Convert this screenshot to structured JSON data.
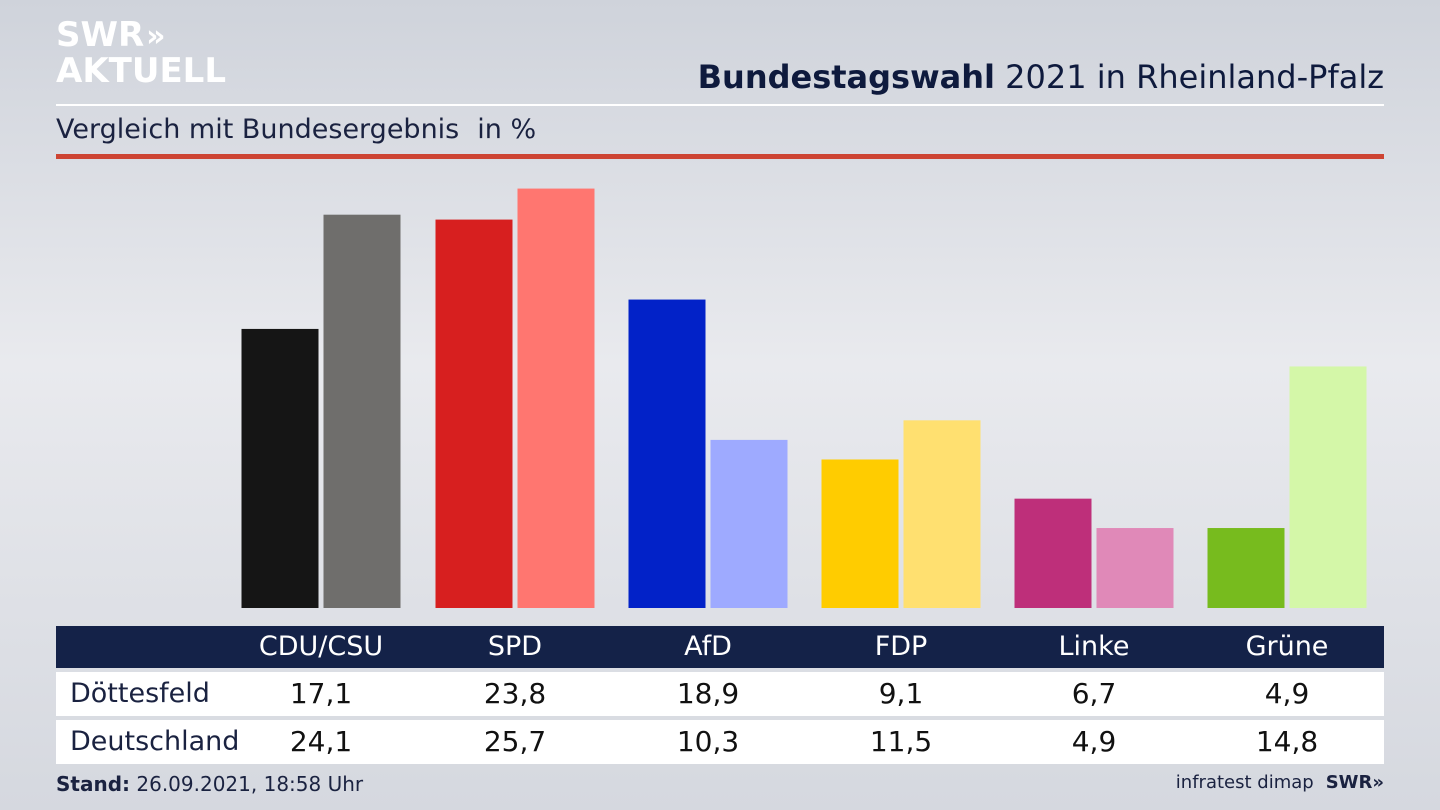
{
  "brand": {
    "line1": "SWR",
    "line1_arrows": "»",
    "line2": "AKTUELL"
  },
  "header": {
    "title_bold": "Bundestagswahl",
    "title_rest": " 2021 in Rheinland-Pfalz"
  },
  "subtitle": {
    "text": "Vergleich mit Bundesergebnis",
    "unit": "in %"
  },
  "colors": {
    "accent_red": "#cd4433",
    "table_header": "#142248",
    "CDU/CSU": [
      "#151515",
      "#6f6e6c"
    ],
    "SPD": [
      "#d71f1f",
      "#ff7670"
    ],
    "AfD": [
      "#0222c8",
      "#9eaaff"
    ],
    "FDP": [
      "#ffcc00",
      "#ffe070"
    ],
    "Linke": [
      "#be2f7a",
      "#e089b8"
    ],
    "Grüne": [
      "#77bb1e",
      "#d4f7a8"
    ]
  },
  "chart_data": {
    "type": "bar",
    "categories": [
      "CDU/CSU",
      "SPD",
      "AfD",
      "FDP",
      "Linke",
      "Grüne"
    ],
    "series": [
      {
        "name": "Döttesfeld",
        "values": [
          17.1,
          23.8,
          18.9,
          9.1,
          6.7,
          4.9
        ]
      },
      {
        "name": "Deutschland",
        "values": [
          24.1,
          25.7,
          10.3,
          11.5,
          4.9,
          14.8
        ]
      }
    ],
    "title": "Bundestagswahl 2021 in Rheinland-Pfalz",
    "subtitle": "Vergleich mit Bundesergebnis",
    "unit": "in %",
    "grid": false
  },
  "table": {
    "headers": [
      "CDU/CSU",
      "SPD",
      "AfD",
      "FDP",
      "Linke",
      "Grüne"
    ],
    "rows": [
      {
        "label": "Döttesfeld",
        "values": [
          "17,1",
          "23,8",
          "18,9",
          "9,1",
          "6,7",
          "4,9"
        ]
      },
      {
        "label": "Deutschland",
        "values": [
          "24,1",
          "25,7",
          "10,3",
          "11,5",
          "4,9",
          "14,8"
        ]
      }
    ]
  },
  "footer": {
    "stand_label": "Stand:",
    "stand_value": " 26.09.2021, 18:58 Uhr",
    "source": "infratest dimap",
    "brand": "SWR»"
  }
}
